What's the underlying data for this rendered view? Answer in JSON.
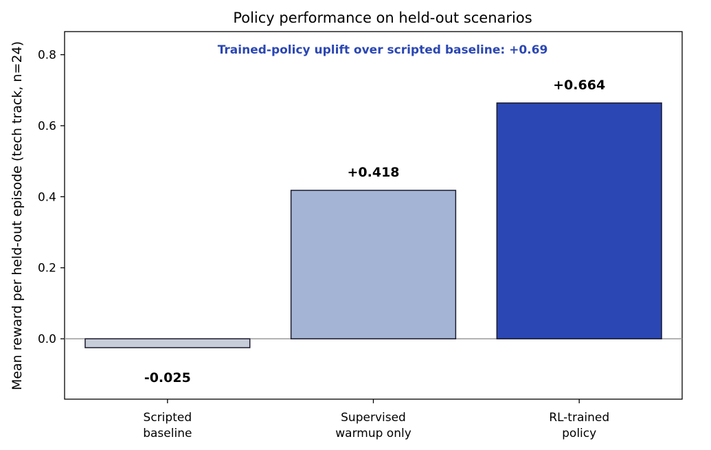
{
  "chart_data": {
    "type": "bar",
    "title": "Policy performance on held-out scenarios",
    "annotation": "Trained-policy uplift over scripted baseline: +0.69",
    "ylabel": "Mean reward per held-out episode (tech track, n=24)",
    "xlabel": "",
    "categories": [
      [
        "Scripted",
        "baseline"
      ],
      [
        "Supervised",
        "warmup only"
      ],
      [
        "RL-trained",
        "policy"
      ]
    ],
    "values": [
      -0.025,
      0.418,
      0.664
    ],
    "value_labels": [
      "-0.025",
      "+0.418",
      "+0.664"
    ],
    "bar_colors": [
      "#c7cdd9",
      "#a4b4d5",
      "#2b47b3"
    ],
    "annotation_color": "#2b47b3",
    "ylim": [
      -0.17,
      0.865
    ],
    "yticks": [
      0.0,
      0.2,
      0.4,
      0.6,
      0.8
    ],
    "ytick_labels": [
      "0.0",
      "0.2",
      "0.4",
      "0.6",
      "0.8"
    ],
    "zero_line": true,
    "grid": false
  }
}
